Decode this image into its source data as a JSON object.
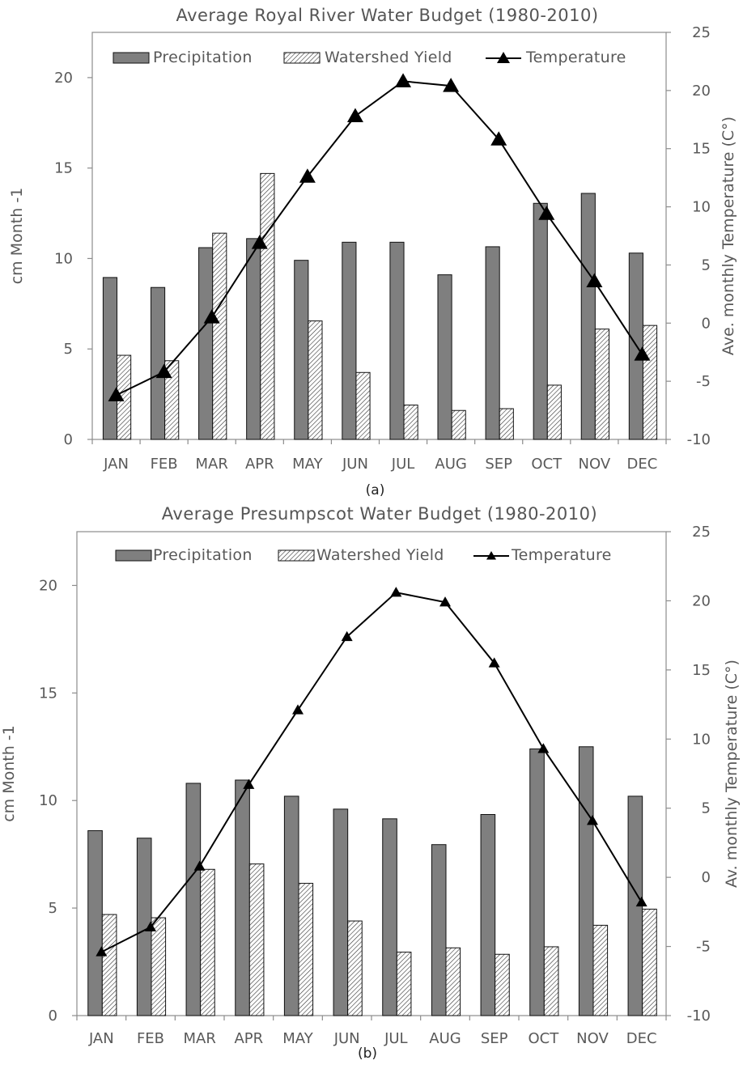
{
  "chart_data": [
    {
      "type": "bar",
      "title": "Average Royal River Water Budget (1980-2010)",
      "caption": "(a)",
      "categories": [
        "JAN",
        "FEB",
        "MAR",
        "APR",
        "MAY",
        "JUN",
        "JUL",
        "AUG",
        "SEP",
        "OCT",
        "NOV",
        "DEC"
      ],
      "series": [
        {
          "name": "Precipitation",
          "kind": "bar",
          "axis": "left",
          "color": "#7f7f7f",
          "values": [
            8.95,
            8.4,
            10.6,
            11.1,
            9.9,
            10.9,
            10.9,
            9.1,
            10.65,
            13.05,
            13.6,
            10.3
          ]
        },
        {
          "name": "Watershed Yield",
          "kind": "bar",
          "axis": "left",
          "pattern": "diagonal-hatch",
          "values": [
            4.65,
            4.35,
            11.4,
            14.7,
            6.55,
            3.7,
            1.9,
            1.6,
            1.7,
            3.0,
            6.1,
            6.3
          ]
        },
        {
          "name": "Temperature",
          "kind": "line",
          "axis": "right",
          "marker": "triangle",
          "color": "#000000",
          "values": [
            -6.2,
            -4.2,
            0.5,
            6.9,
            12.6,
            17.8,
            20.8,
            20.4,
            15.8,
            9.4,
            3.6,
            -2.7
          ]
        }
      ],
      "ylabel": "cm Month -1",
      "ylabel_right": "Ave. monthly Temperature (C°)",
      "ylim": [
        0,
        22.5
      ],
      "ylim_right": [
        -10,
        25
      ],
      "yticks": [
        0,
        5,
        10,
        15,
        20
      ],
      "yticks_right": [
        -10,
        -5,
        0,
        5,
        10,
        15,
        20,
        25
      ],
      "legend": "top",
      "grid": false
    },
    {
      "type": "bar",
      "title": "Average Presumpscot Water Budget (1980-2010)",
      "caption": "(b)",
      "categories": [
        "JAN",
        "FEB",
        "MAR",
        "APR",
        "MAY",
        "JUN",
        "JUL",
        "AUG",
        "SEP",
        "OCT",
        "NOV",
        "DEC"
      ],
      "series": [
        {
          "name": "Precipitation",
          "kind": "bar",
          "axis": "left",
          "color": "#7f7f7f",
          "values": [
            8.6,
            8.25,
            10.8,
            10.95,
            10.2,
            9.6,
            9.15,
            7.95,
            9.35,
            12.4,
            12.5,
            10.2
          ]
        },
        {
          "name": "Watershed Yield",
          "kind": "bar",
          "axis": "left",
          "pattern": "diagonal-hatch",
          "values": [
            4.7,
            4.55,
            6.8,
            7.05,
            6.15,
            4.4,
            2.95,
            3.15,
            2.85,
            3.2,
            4.2,
            4.95
          ]
        },
        {
          "name": "Temperature",
          "kind": "line",
          "axis": "right",
          "marker": "triangle",
          "color": "#000000",
          "values": [
            -5.4,
            -3.6,
            0.8,
            6.7,
            12.1,
            17.4,
            20.6,
            19.9,
            15.5,
            9.3,
            4.1,
            -1.8
          ]
        }
      ],
      "ylabel": "cm Month -1",
      "ylabel_right": "Av. monthly Temperature (C°)",
      "ylim": [
        0,
        22.5
      ],
      "ylim_right": [
        -10,
        25
      ],
      "yticks": [
        0,
        5,
        10,
        15,
        20
      ],
      "yticks_right": [
        -10,
        -5,
        0,
        5,
        10,
        15,
        20,
        25
      ],
      "legend": "top",
      "grid": false
    }
  ]
}
